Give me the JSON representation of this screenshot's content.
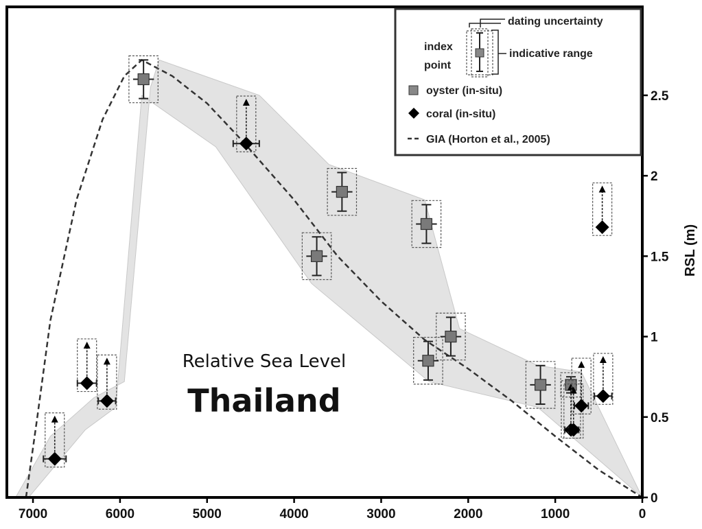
{
  "chart_data": {
    "type": "scatter",
    "title": "Relative Sea Level",
    "subtitle": "Thailand",
    "xlabel": "",
    "ylabel": "RSL (m)",
    "xlim": [
      7300,
      0
    ],
    "ylim": [
      0,
      3.05
    ],
    "x_ticks": [
      "7000",
      "6000",
      "5000",
      "4000",
      "3000",
      "2000",
      "1000",
      "0"
    ],
    "y_ticks": [
      "0",
      "0.5",
      "1",
      "1.5",
      "2",
      "2.5"
    ],
    "grid": false,
    "legend_position": "top-right",
    "colors": {
      "oyster": "#7a7a7a",
      "coral": "#000000",
      "envelope": "#e3e3e3",
      "gia": "#333333"
    },
    "envelope": [
      [
        7200,
        0
      ],
      [
        6800,
        0.38
      ],
      [
        6300,
        0.62
      ],
      [
        5950,
        0.72
      ],
      [
        5650,
        2.55
      ],
      [
        5550,
        2.72
      ],
      [
        4400,
        2.5
      ],
      [
        3600,
        2.07
      ],
      [
        2500,
        1.85
      ],
      [
        2100,
        1.05
      ],
      [
        1200,
        0.82
      ],
      [
        700,
        0.78
      ],
      [
        0,
        0
      ],
      [
        1200,
        0.56
      ],
      [
        2450,
        0.72
      ],
      [
        3800,
        1.33
      ],
      [
        4900,
        2.18
      ],
      [
        5750,
        2.5
      ],
      [
        6050,
        0.56
      ],
      [
        6400,
        0.42
      ],
      [
        7050,
        0
      ]
    ],
    "gia_curve": [
      [
        7080,
        0
      ],
      [
        6950,
        0.5
      ],
      [
        6800,
        1.1
      ],
      [
        6500,
        1.85
      ],
      [
        6200,
        2.35
      ],
      [
        5950,
        2.62
      ],
      [
        5750,
        2.72
      ],
      [
        5400,
        2.62
      ],
      [
        5000,
        2.45
      ],
      [
        4600,
        2.22
      ],
      [
        4000,
        1.85
      ],
      [
        3500,
        1.5
      ],
      [
        3000,
        1.22
      ],
      [
        2500,
        0.98
      ],
      [
        2000,
        0.8
      ],
      [
        1500,
        0.6
      ],
      [
        1000,
        0.38
      ],
      [
        500,
        0.17
      ],
      [
        0,
        0
      ]
    ],
    "oyster_points": [
      {
        "x": 5730,
        "y": 2.6,
        "y_err": 0.12,
        "x_err": 120
      },
      {
        "x": 3450,
        "y": 1.9,
        "y_err": 0.12,
        "x_err": 120
      },
      {
        "x": 3740,
        "y": 1.5,
        "y_err": 0.12,
        "x_err": 120
      },
      {
        "x": 2480,
        "y": 1.7,
        "y_err": 0.12,
        "x_err": 120
      },
      {
        "x": 2200,
        "y": 1.0,
        "y_err": 0.12,
        "x_err": 120
      },
      {
        "x": 2460,
        "y": 0.85,
        "y_err": 0.12,
        "x_err": 120
      },
      {
        "x": 1170,
        "y": 0.7,
        "y_err": 0.12,
        "x_err": 120
      },
      {
        "x": 820,
        "y": 0.7,
        "y_err": 0.05,
        "x_err": 70
      }
    ],
    "coral_points": [
      {
        "x": 4550,
        "y": 2.2,
        "arrow_to": 2.47,
        "x_err": 150
      },
      {
        "x": 6750,
        "y": 0.24,
        "arrow_to": 0.5,
        "x_err": 130
      },
      {
        "x": 6380,
        "y": 0.71,
        "arrow_to": 0.96,
        "x_err": 110
      },
      {
        "x": 6150,
        "y": 0.6,
        "arrow_to": 0.86,
        "x_err": 100
      },
      {
        "x": 820,
        "y": 0.42,
        "arrow_to": 0.7,
        "x_err": 70
      },
      {
        "x": 790,
        "y": 0.42,
        "arrow_to": 0.68,
        "x_err": 60
      },
      {
        "x": 700,
        "y": 0.57,
        "arrow_to": 0.84,
        "x_err": 80
      },
      {
        "x": 450,
        "y": 0.63,
        "arrow_to": 0.87,
        "x_err": 100
      },
      {
        "x": 460,
        "y": 1.68,
        "arrow_to": 1.93,
        "x_err": 0
      }
    ],
    "legend": {
      "dating": "dating uncertainty",
      "index": "index",
      "point": "point",
      "indicative": "indicative range",
      "oyster": "oyster (in-situ)",
      "coral": "coral (in-situ)",
      "gia": "GIA (Horton et al., 2005)"
    }
  }
}
